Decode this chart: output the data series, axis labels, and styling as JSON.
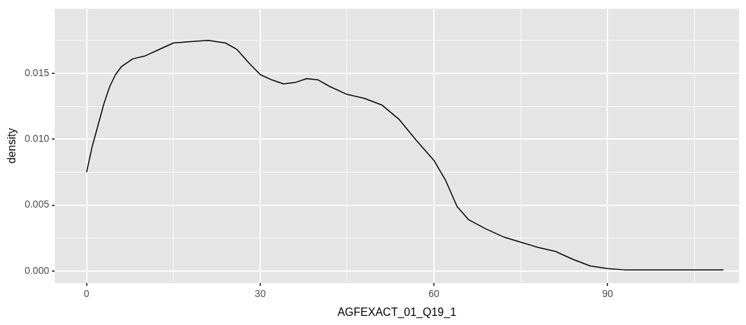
{
  "chart_data": {
    "type": "line",
    "xlabel": "AGFEXACT_01_Q19_1",
    "ylabel": "density",
    "x": [
      0,
      1,
      2,
      3,
      4,
      5,
      6,
      8,
      10,
      13,
      15,
      18,
      21,
      24,
      26,
      28,
      30,
      32,
      34,
      36,
      38,
      40,
      42,
      45,
      48,
      51,
      54,
      57,
      60,
      62,
      64,
      66,
      69,
      72,
      75,
      78,
      81,
      84,
      87,
      90,
      93,
      110
    ],
    "series": [
      {
        "color": "#000000",
        "values": [
          0.0075,
          0.0095,
          0.0111,
          0.0127,
          0.014,
          0.0149,
          0.0155,
          0.0161,
          0.0163,
          0.0169,
          0.0173,
          0.0174,
          0.0175,
          0.0173,
          0.0168,
          0.0158,
          0.0149,
          0.0145,
          0.0142,
          0.0143,
          0.0146,
          0.0145,
          0.014,
          0.0134,
          0.0131,
          0.0126,
          0.0115,
          0.0099,
          0.0084,
          0.0069,
          0.0049,
          0.0039,
          0.0032,
          0.0026,
          0.0022,
          0.0018,
          0.0015,
          0.0009,
          0.0004,
          0.0002,
          0.0001,
          0.0001
        ]
      }
    ],
    "xlim": [
      -5.5,
      112.7
    ],
    "ylim": [
      -0.0009,
      0.0199
    ],
    "xticks": [
      0,
      {
        "value": 15,
        "label": null
      },
      30,
      {
        "value": 45,
        "label": null
      },
      60,
      {
        "value": 75,
        "label": null
      },
      90,
      {
        "value": 105,
        "label": null
      }
    ],
    "yticks": [
      {
        "value": 0,
        "label": "0.000"
      },
      {
        "value": 0.0025,
        "label": null
      },
      {
        "value": 0.005,
        "label": "0.005"
      },
      {
        "value": 0.0075,
        "label": null
      },
      {
        "value": 0.01,
        "label": "0.010"
      },
      {
        "value": 0.0125,
        "label": null
      },
      {
        "value": 0.015,
        "label": "0.015"
      },
      {
        "value": 0.0175,
        "label": null
      }
    ],
    "grid": true,
    "legend": false,
    "marker": "none",
    "line_style": "solid"
  }
}
